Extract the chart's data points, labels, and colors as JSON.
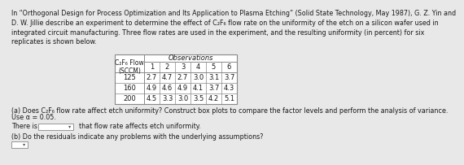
{
  "para_text": "In “Orthogonal Design for Process Optimization and Its Application to Plasma Etching” (Solid State Technology, May 1987), G. Z. Yin and\nD. W. Jillie describe an experiment to determine the effect of C₂F₆ flow rate on the uniformity of the etch on a silicon wafer used in\nintegrated circuit manufacturing. Three flow rates are used in the experiment, and the resulting uniformity (in percent) for six\nreplicates is shown below.",
  "obs_header": "Observations",
  "col0_label": "C₂F₆ Flow\n(SCCM)",
  "col_nums": [
    "1",
    "2",
    "3",
    "4",
    "5",
    "6"
  ],
  "table_rows": [
    [
      "125",
      "2.7",
      "4.7",
      "2.7",
      "3.0",
      "3.1",
      "3.7"
    ],
    [
      "160",
      "4.9",
      "4.6",
      "4.9",
      "4.1",
      "3.7",
      "4.3"
    ],
    [
      "200",
      "4.5",
      "3.3",
      "3.0",
      "3.5",
      "4.2",
      "5.1"
    ]
  ],
  "qa_line1": "(a) Does C₂F₆ flow rate affect etch uniformity? Construct box plots to compare the factor levels and perform the analysis of variance.",
  "qa_line2": "Use α = 0.05.",
  "there_is": "There is",
  "dropdown_suffix": "  that flow rate affects etch uniformity.",
  "qb": "(b) Do the residuals indicate any problems with the underlying assumptions?",
  "bg_color": "#e8e8e8",
  "white": "#ffffff",
  "border_color": "#888888",
  "text_color": "#1a1a1a",
  "fs_body": 5.8,
  "fs_table": 6.0
}
